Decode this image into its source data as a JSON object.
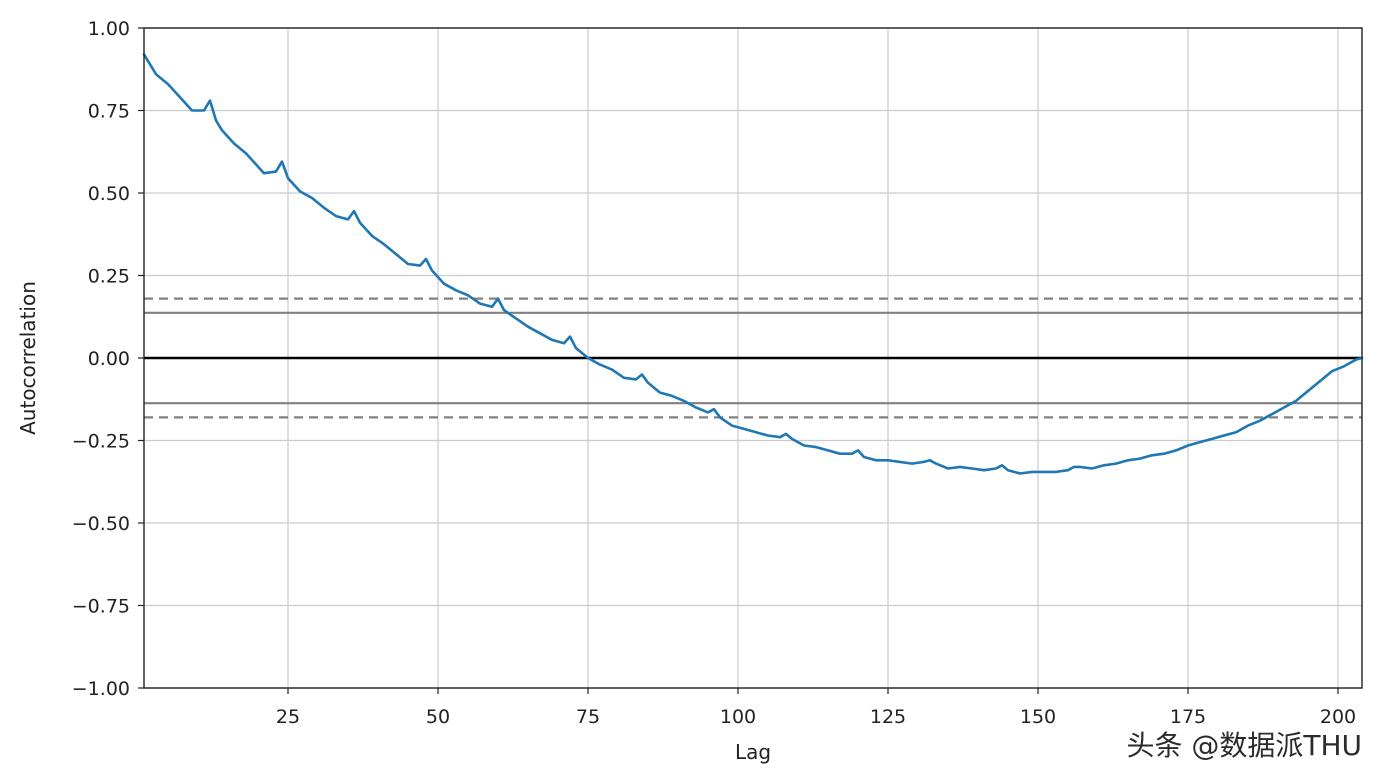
{
  "chart_data": {
    "type": "line",
    "xlabel": "Lag",
    "ylabel": "Autocorrelation",
    "xlim": [
      1,
      204
    ],
    "ylim": [
      -1.0,
      1.0
    ],
    "x_ticks": [
      25,
      50,
      75,
      100,
      125,
      150,
      175,
      200
    ],
    "x_tick_labels": [
      "25",
      "50",
      "75",
      "100",
      "125",
      "150",
      "175",
      "200"
    ],
    "y_ticks": [
      1.0,
      0.75,
      0.5,
      0.25,
      0.0,
      -0.25,
      -0.5,
      -0.75,
      -1.0
    ],
    "y_tick_labels": [
      "1.00",
      "0.75",
      "0.50",
      "0.25",
      "0.00",
      "−0.25",
      "−0.50",
      "−0.75",
      "−1.00"
    ],
    "grid": true,
    "series_color": "#1f77b4",
    "reference_lines": [
      {
        "y": 0.0,
        "style": "solid",
        "color": "#000000"
      },
      {
        "y": 0.137,
        "style": "solid",
        "color": "#808080"
      },
      {
        "y": -0.137,
        "style": "solid",
        "color": "#808080"
      },
      {
        "y": 0.18,
        "style": "dashed",
        "color": "#808080"
      },
      {
        "y": -0.18,
        "style": "dashed",
        "color": "#808080"
      }
    ],
    "series": [
      {
        "x": [
          1,
          3,
          5,
          7,
          9,
          11,
          12,
          13,
          14,
          16,
          18,
          20,
          21,
          23,
          24,
          25,
          27,
          29,
          31,
          33,
          35,
          36,
          37,
          39,
          41,
          43,
          45,
          47,
          48,
          49,
          51,
          53,
          55,
          57,
          59,
          60,
          61,
          63,
          65,
          67,
          69,
          71,
          72,
          73,
          75,
          77,
          79,
          81,
          83,
          84,
          85,
          87,
          89,
          91,
          93,
          95,
          96,
          97,
          99,
          101,
          103,
          105,
          107,
          108,
          109,
          111,
          113,
          115,
          117,
          119,
          120,
          121,
          123,
          125,
          127,
          129,
          131,
          132,
          133,
          135,
          137,
          139,
          141,
          143,
          144,
          145,
          147,
          149,
          151,
          153,
          155,
          156,
          157,
          159,
          161,
          163,
          165,
          167,
          169,
          171,
          173,
          175,
          177,
          179,
          181,
          183,
          185,
          187,
          189,
          191,
          193,
          195,
          197,
          199,
          201,
          203,
          204
        ],
        "values": [
          0.92,
          0.86,
          0.83,
          0.79,
          0.75,
          0.75,
          0.78,
          0.72,
          0.69,
          0.65,
          0.62,
          0.58,
          0.56,
          0.565,
          0.595,
          0.545,
          0.505,
          0.485,
          0.455,
          0.43,
          0.42,
          0.445,
          0.41,
          0.37,
          0.345,
          0.315,
          0.285,
          0.28,
          0.3,
          0.265,
          0.225,
          0.205,
          0.19,
          0.165,
          0.155,
          0.18,
          0.145,
          0.12,
          0.095,
          0.075,
          0.055,
          0.045,
          0.065,
          0.03,
          0.0,
          -0.02,
          -0.035,
          -0.06,
          -0.065,
          -0.05,
          -0.075,
          -0.105,
          -0.115,
          -0.13,
          -0.15,
          -0.165,
          -0.155,
          -0.18,
          -0.205,
          -0.215,
          -0.225,
          -0.235,
          -0.24,
          -0.23,
          -0.245,
          -0.265,
          -0.27,
          -0.28,
          -0.29,
          -0.29,
          -0.28,
          -0.3,
          -0.31,
          -0.31,
          -0.315,
          -0.32,
          -0.315,
          -0.31,
          -0.32,
          -0.335,
          -0.33,
          -0.335,
          -0.34,
          -0.335,
          -0.325,
          -0.34,
          -0.35,
          -0.345,
          -0.345,
          -0.345,
          -0.34,
          -0.33,
          -0.33,
          -0.335,
          -0.325,
          -0.32,
          -0.31,
          -0.305,
          -0.295,
          -0.29,
          -0.28,
          -0.265,
          -0.255,
          -0.245,
          -0.235,
          -0.225,
          -0.205,
          -0.19,
          -0.17,
          -0.15,
          -0.13,
          -0.1,
          -0.07,
          -0.04,
          -0.025,
          -0.005,
          0.0
        ]
      }
    ]
  },
  "watermark": "头条 @数据派THU"
}
